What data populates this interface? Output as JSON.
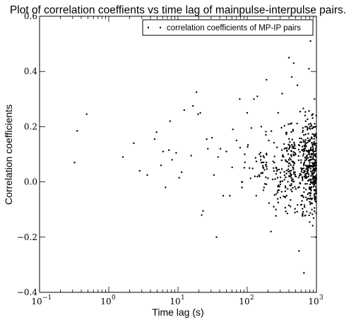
{
  "chart_data": {
    "type": "scatter",
    "title": "Plot of correlation coeffients vs time lag of mainpulse-interpulse pairs.",
    "xlabel": "Time lag (s)",
    "ylabel": "Correlation coefficients",
    "xscale": "log",
    "xlim": [
      0.1,
      1000
    ],
    "ylim": [
      -0.4,
      0.6
    ],
    "x_ticks": [
      {
        "value": 0.1,
        "base": "10",
        "exp": "−1"
      },
      {
        "value": 1,
        "base": "10",
        "exp": "0"
      },
      {
        "value": 10,
        "base": "10",
        "exp": "1"
      },
      {
        "value": 100,
        "base": "10",
        "exp": "2"
      },
      {
        "value": 1000,
        "base": "10",
        "exp": "3"
      }
    ],
    "y_ticks": [
      {
        "value": -0.4,
        "label": "−0.4"
      },
      {
        "value": -0.2,
        "label": "−0.2"
      },
      {
        "value": 0.0,
        "label": "0.0"
      },
      {
        "value": 0.2,
        "label": "0.2"
      },
      {
        "value": 0.4,
        "label": "0.4"
      },
      {
        "value": 0.6,
        "label": "0.6"
      }
    ],
    "grid": false,
    "legend_position": "top-right",
    "series": [
      {
        "name": "correlation coefficients of MP-IP pairs",
        "color": "#000000",
        "marker": "point",
        "points": [
          [
            0.32,
            0.07
          ],
          [
            0.35,
            0.185
          ],
          [
            0.48,
            0.245
          ],
          [
            1.6,
            0.09
          ],
          [
            2.3,
            0.14
          ],
          [
            2.8,
            0.04
          ],
          [
            3.6,
            0.025
          ],
          [
            4.6,
            0.155
          ],
          [
            4.9,
            0.18
          ],
          [
            5.7,
            0.06
          ],
          [
            6.1,
            0.11
          ],
          [
            6.6,
            -0.02
          ],
          [
            7.4,
            0.115
          ],
          [
            7.7,
            0.22
          ],
          [
            8.2,
            0.08
          ],
          [
            9.4,
            0.105
          ],
          [
            10.4,
            0.015
          ],
          [
            11.3,
            0.035
          ],
          [
            12.3,
            0.26
          ],
          [
            15.5,
            0.095
          ],
          [
            16.5,
            0.275
          ],
          [
            18.5,
            0.325
          ],
          [
            19.5,
            0.245
          ],
          [
            21,
            0.25
          ],
          [
            22,
            -0.12
          ],
          [
            23,
            -0.105
          ],
          [
            26,
            0.155
          ],
          [
            27,
            0.12
          ],
          [
            31,
            0.16
          ],
          [
            33,
            0.025
          ],
          [
            36,
            -0.2
          ],
          [
            38,
            0.09
          ],
          [
            41,
            0.12
          ],
          [
            45,
            -0.05
          ],
          [
            50,
            0.11
          ],
          [
            56,
            -0.05
          ],
          [
            62,
            0.19
          ],
          [
            70,
            0.15
          ],
          [
            78,
            0.3
          ],
          [
            85,
            0.0
          ],
          [
            92,
            0.1
          ],
          [
            100,
            0.25
          ],
          [
            108,
            0.05
          ],
          [
            115,
            0.195
          ],
          [
            125,
            0.3
          ],
          [
            135,
            -0.05
          ],
          [
            140,
            0.31
          ],
          [
            150,
            0.1
          ],
          [
            160,
            0.2
          ],
          [
            175,
            -0.02
          ],
          [
            190,
            0.37
          ],
          [
            205,
            0.15
          ],
          [
            220,
            -0.18
          ],
          [
            240,
            0.05
          ],
          [
            260,
            -0.1
          ],
          [
            280,
            0.25
          ],
          [
            300,
            0.0
          ],
          [
            320,
            0.32
          ],
          [
            345,
            0.12
          ],
          [
            370,
            -0.05
          ],
          [
            400,
            0.45
          ],
          [
            420,
            0.21
          ],
          [
            440,
            0.38
          ],
          [
            470,
            0.43
          ],
          [
            500,
            0.1
          ],
          [
            530,
            0.35
          ],
          [
            560,
            -0.25
          ],
          [
            600,
            0.05
          ],
          [
            630,
            0.18
          ],
          [
            660,
            -0.33
          ],
          [
            700,
            0.22
          ],
          [
            740,
            0.05
          ],
          [
            780,
            0.41
          ],
          [
            820,
            0.51
          ],
          [
            860,
            -0.1
          ],
          [
            900,
            0.12
          ],
          [
            940,
            0.3
          ],
          [
            970,
            0.02
          ],
          [
            990,
            -0.2
          ],
          [
            1000,
            0.16
          ]
        ],
        "density_bands": [
          {
            "x_range": [
              60,
              200
            ],
            "y_range": [
              -0.08,
              0.2
            ],
            "count": 45
          },
          {
            "x_range": [
              200,
              500
            ],
            "y_range": [
              -0.15,
              0.25
            ],
            "count": 160
          },
          {
            "x_range": [
              500,
              1000
            ],
            "y_range": [
              -0.2,
              0.3
            ],
            "count": 380
          }
        ]
      }
    ]
  }
}
